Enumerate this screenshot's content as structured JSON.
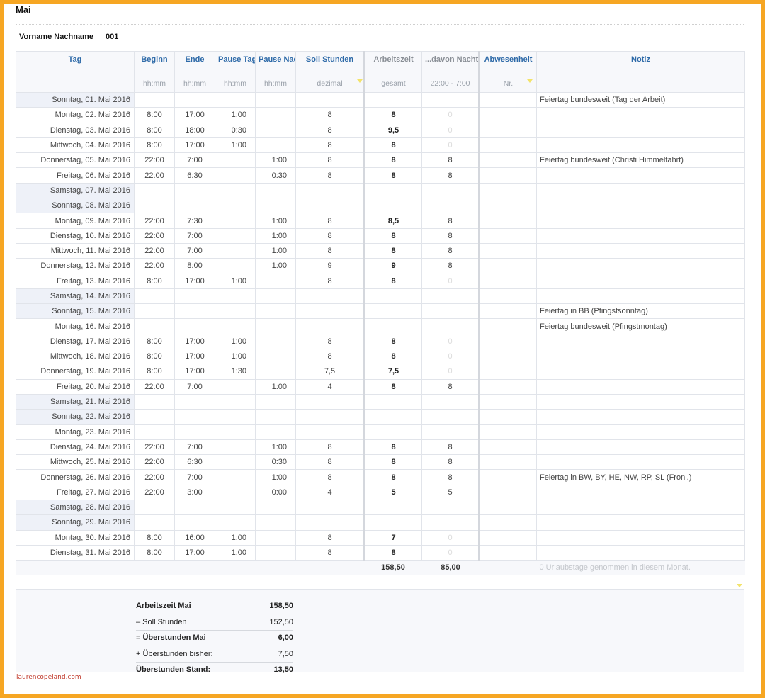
{
  "sheet": {
    "title": "Mai",
    "employee_name": "Vorname Nachname",
    "employee_id": "001"
  },
  "columns": [
    {
      "label": "Tag",
      "sub": ""
    },
    {
      "label": "Beginn",
      "sub": "hh:mm"
    },
    {
      "label": "Ende",
      "sub": "hh:mm"
    },
    {
      "label": "Pause Tag",
      "sub": "hh:mm"
    },
    {
      "label": "Pause Nacht",
      "sub": "hh:mm"
    },
    {
      "label": "Soll Stunden",
      "sub": "dezimal"
    },
    {
      "label": "Arbeitszeit",
      "sub": "gesamt"
    },
    {
      "label": "...davon Nachtzeit",
      "sub": "22:00 - 7:00"
    },
    {
      "label": "Abwesenheit",
      "sub": "Nr."
    },
    {
      "label": "Notiz",
      "sub": ""
    }
  ],
  "rows": [
    {
      "day": "Sonntag, 01. Mai 2016",
      "weekend": true,
      "start": "",
      "end": "",
      "pause_day": "",
      "pause_night": "",
      "target": "",
      "worked": "",
      "night": "",
      "absence": "",
      "note": "Feiertag bundesweit (Tag der Arbeit)"
    },
    {
      "day": "Montag, 02. Mai 2016",
      "weekend": false,
      "start": "8:00",
      "end": "17:00",
      "pause_day": "1:00",
      "pause_night": "",
      "target": "8",
      "worked": "8",
      "night": "0",
      "absence": "",
      "note": ""
    },
    {
      "day": "Dienstag, 03. Mai 2016",
      "weekend": false,
      "start": "8:00",
      "end": "18:00",
      "pause_day": "0:30",
      "pause_night": "",
      "target": "8",
      "worked": "9,5",
      "night": "0",
      "absence": "",
      "note": ""
    },
    {
      "day": "Mittwoch, 04. Mai 2016",
      "weekend": false,
      "start": "8:00",
      "end": "17:00",
      "pause_day": "1:00",
      "pause_night": "",
      "target": "8",
      "worked": "8",
      "night": "0",
      "absence": "",
      "note": ""
    },
    {
      "day": "Donnerstag, 05. Mai 2016",
      "weekend": false,
      "start": "22:00",
      "end": "7:00",
      "pause_day": "",
      "pause_night": "1:00",
      "target": "8",
      "worked": "8",
      "night": "8",
      "absence": "",
      "note": "Feiertag bundesweit (Christi Himmelfahrt)"
    },
    {
      "day": "Freitag, 06. Mai 2016",
      "weekend": false,
      "start": "22:00",
      "end": "6:30",
      "pause_day": "",
      "pause_night": "0:30",
      "target": "8",
      "worked": "8",
      "night": "8",
      "absence": "",
      "note": ""
    },
    {
      "day": "Samstag, 07. Mai 2016",
      "weekend": true,
      "start": "",
      "end": "",
      "pause_day": "",
      "pause_night": "",
      "target": "",
      "worked": "",
      "night": "",
      "absence": "",
      "note": ""
    },
    {
      "day": "Sonntag, 08. Mai 2016",
      "weekend": true,
      "start": "",
      "end": "",
      "pause_day": "",
      "pause_night": "",
      "target": "",
      "worked": "",
      "night": "",
      "absence": "",
      "note": ""
    },
    {
      "day": "Montag, 09. Mai 2016",
      "weekend": false,
      "start": "22:00",
      "end": "7:30",
      "pause_day": "",
      "pause_night": "1:00",
      "target": "8",
      "worked": "8,5",
      "night": "8",
      "absence": "",
      "note": ""
    },
    {
      "day": "Dienstag, 10. Mai 2016",
      "weekend": false,
      "start": "22:00",
      "end": "7:00",
      "pause_day": "",
      "pause_night": "1:00",
      "target": "8",
      "worked": "8",
      "night": "8",
      "absence": "",
      "note": ""
    },
    {
      "day": "Mittwoch, 11. Mai 2016",
      "weekend": false,
      "start": "22:00",
      "end": "7:00",
      "pause_day": "",
      "pause_night": "1:00",
      "target": "8",
      "worked": "8",
      "night": "8",
      "absence": "",
      "note": ""
    },
    {
      "day": "Donnerstag, 12. Mai 2016",
      "weekend": false,
      "start": "22:00",
      "end": "8:00",
      "pause_day": "",
      "pause_night": "1:00",
      "target": "9",
      "worked": "9",
      "night": "8",
      "absence": "",
      "note": ""
    },
    {
      "day": "Freitag, 13. Mai 2016",
      "weekend": false,
      "start": "8:00",
      "end": "17:00",
      "pause_day": "1:00",
      "pause_night": "",
      "target": "8",
      "worked": "8",
      "night": "0",
      "absence": "",
      "note": ""
    },
    {
      "day": "Samstag, 14. Mai 2016",
      "weekend": true,
      "start": "",
      "end": "",
      "pause_day": "",
      "pause_night": "",
      "target": "",
      "worked": "",
      "night": "",
      "absence": "",
      "note": ""
    },
    {
      "day": "Sonntag, 15. Mai 2016",
      "weekend": true,
      "start": "",
      "end": "",
      "pause_day": "",
      "pause_night": "",
      "target": "",
      "worked": "",
      "night": "",
      "absence": "",
      "note": "Feiertag in BB (Pfingstsonntag)"
    },
    {
      "day": "Montag, 16. Mai 2016",
      "weekend": false,
      "start": "",
      "end": "",
      "pause_day": "",
      "pause_night": "",
      "target": "",
      "worked": "",
      "night": "",
      "absence": "",
      "note": "Feiertag bundesweit (Pfingstmontag)"
    },
    {
      "day": "Dienstag, 17. Mai 2016",
      "weekend": false,
      "start": "8:00",
      "end": "17:00",
      "pause_day": "1:00",
      "pause_night": "",
      "target": "8",
      "worked": "8",
      "night": "0",
      "absence": "",
      "note": ""
    },
    {
      "day": "Mittwoch, 18. Mai 2016",
      "weekend": false,
      "start": "8:00",
      "end": "17:00",
      "pause_day": "1:00",
      "pause_night": "",
      "target": "8",
      "worked": "8",
      "night": "0",
      "absence": "",
      "note": ""
    },
    {
      "day": "Donnerstag, 19. Mai 2016",
      "weekend": false,
      "start": "8:00",
      "end": "17:00",
      "pause_day": "1:30",
      "pause_night": "",
      "target": "7,5",
      "worked": "7,5",
      "night": "0",
      "absence": "",
      "note": ""
    },
    {
      "day": "Freitag, 20. Mai 2016",
      "weekend": false,
      "start": "22:00",
      "end": "7:00",
      "pause_day": "",
      "pause_night": "1:00",
      "target": "4",
      "worked": "8",
      "night": "8",
      "absence": "",
      "note": ""
    },
    {
      "day": "Samstag, 21. Mai 2016",
      "weekend": true,
      "start": "",
      "end": "",
      "pause_day": "",
      "pause_night": "",
      "target": "",
      "worked": "",
      "night": "",
      "absence": "",
      "note": ""
    },
    {
      "day": "Sonntag, 22. Mai 2016",
      "weekend": true,
      "start": "",
      "end": "",
      "pause_day": "",
      "pause_night": "",
      "target": "",
      "worked": "",
      "night": "",
      "absence": "",
      "note": ""
    },
    {
      "day": "Montag, 23. Mai 2016",
      "weekend": false,
      "start": "",
      "end": "",
      "pause_day": "",
      "pause_night": "",
      "target": "",
      "worked": "",
      "night": "",
      "absence": "",
      "note": ""
    },
    {
      "day": "Dienstag, 24. Mai 2016",
      "weekend": false,
      "start": "22:00",
      "end": "7:00",
      "pause_day": "",
      "pause_night": "1:00",
      "target": "8",
      "worked": "8",
      "night": "8",
      "absence": "",
      "note": ""
    },
    {
      "day": "Mittwoch, 25. Mai 2016",
      "weekend": false,
      "start": "22:00",
      "end": "6:30",
      "pause_day": "",
      "pause_night": "0:30",
      "target": "8",
      "worked": "8",
      "night": "8",
      "absence": "",
      "note": ""
    },
    {
      "day": "Donnerstag, 26. Mai 2016",
      "weekend": false,
      "start": "22:00",
      "end": "7:00",
      "pause_day": "",
      "pause_night": "1:00",
      "target": "8",
      "worked": "8",
      "night": "8",
      "absence": "",
      "note": "Feiertag in BW, BY, HE, NW, RP, SL (Fronl.)"
    },
    {
      "day": "Freitag, 27. Mai 2016",
      "weekend": false,
      "start": "22:00",
      "end": "3:00",
      "pause_day": "",
      "pause_night": "0:00",
      "target": "4",
      "worked": "5",
      "night": "5",
      "absence": "",
      "note": ""
    },
    {
      "day": "Samstag, 28. Mai 2016",
      "weekend": true,
      "start": "",
      "end": "",
      "pause_day": "",
      "pause_night": "",
      "target": "",
      "worked": "",
      "night": "",
      "absence": "",
      "note": ""
    },
    {
      "day": "Sonntag, 29. Mai 2016",
      "weekend": true,
      "start": "",
      "end": "",
      "pause_day": "",
      "pause_night": "",
      "target": "",
      "worked": "",
      "night": "",
      "absence": "",
      "note": ""
    },
    {
      "day": "Montag, 30. Mai 2016",
      "weekend": false,
      "start": "8:00",
      "end": "16:00",
      "pause_day": "1:00",
      "pause_night": "",
      "target": "8",
      "worked": "7",
      "night": "0",
      "absence": "",
      "note": ""
    },
    {
      "day": "Dienstag, 31. Mai 2016",
      "weekend": false,
      "start": "8:00",
      "end": "17:00",
      "pause_day": "1:00",
      "pause_night": "",
      "target": "8",
      "worked": "8",
      "night": "0",
      "absence": "",
      "note": ""
    }
  ],
  "totals": {
    "worked": "158,50",
    "night": "85,00",
    "vacation_note": "0 Urlaubstage genommen in diesem Monat."
  },
  "summary": [
    {
      "label": "Arbeitszeit Mai",
      "value": "158,50",
      "bold": true,
      "line": false
    },
    {
      "label": "– Soll Stunden",
      "value": "152,50",
      "bold": false,
      "line": true
    },
    {
      "label": "= Überstunden Mai",
      "value": "6,00",
      "bold": true,
      "line": false
    },
    {
      "label": "+ Überstunden bisher:",
      "value": "7,50",
      "bold": false,
      "line": true
    },
    {
      "label": "Überstunden Stand:",
      "value": "13,50",
      "bold": true,
      "line": false
    }
  ],
  "watermark": "laurencopeland.com"
}
